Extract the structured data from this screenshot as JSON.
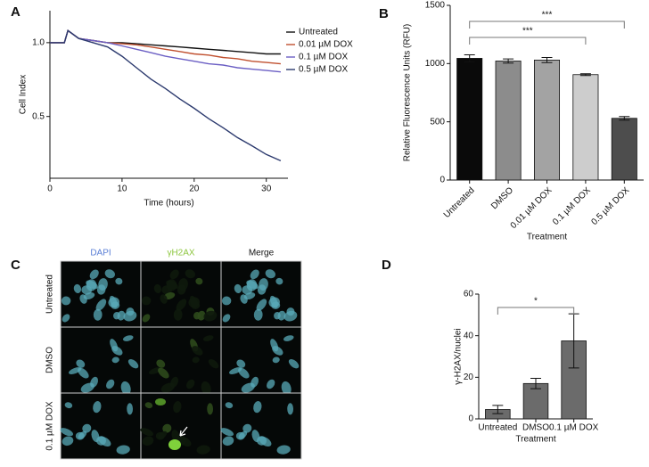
{
  "chart_data": [
    {
      "type": "line",
      "panel_label": "A",
      "x_label": "Time (hours)",
      "y_label": "Cell Index",
      "x": [
        0,
        2,
        2.5,
        4,
        6,
        8,
        10,
        12,
        14,
        16,
        18,
        20,
        22,
        24,
        26,
        28,
        30,
        32
      ],
      "xlim": [
        0,
        33
      ],
      "xticks": [
        0,
        10,
        20,
        30
      ],
      "ylim": [
        0.28,
        1.35
      ],
      "yticks": [
        0.5,
        {
          "value": 1,
          "label": "1.0"
        }
      ],
      "y_scale": "log",
      "legend": "upper right",
      "series": [
        {
          "name": "Untreated",
          "color": "#111111",
          "values": [
            1,
            1,
            1.12,
            1.04,
            1.02,
            1.0,
            1.0,
            0.99,
            0.98,
            0.97,
            0.96,
            0.95,
            0.94,
            0.93,
            0.92,
            0.91,
            0.9,
            0.9
          ]
        },
        {
          "name": "0.01 µM DOX",
          "color": "#c0502f",
          "values": [
            1,
            1,
            1.12,
            1.04,
            1.02,
            1.0,
            0.99,
            0.98,
            0.96,
            0.94,
            0.92,
            0.9,
            0.89,
            0.87,
            0.86,
            0.84,
            0.83,
            0.82
          ]
        },
        {
          "name": "0.1 µM DOX",
          "color": "#6b5fc4",
          "values": [
            1,
            1,
            1.12,
            1.04,
            1.02,
            1.0,
            0.97,
            0.94,
            0.91,
            0.88,
            0.86,
            0.84,
            0.82,
            0.81,
            0.79,
            0.78,
            0.77,
            0.76
          ]
        },
        {
          "name": "0.5 µM DOX",
          "color": "#2c3a6e",
          "values": [
            1,
            1,
            1.12,
            1.04,
            1.0,
            0.96,
            0.88,
            0.79,
            0.71,
            0.65,
            0.59,
            0.54,
            0.49,
            0.45,
            0.41,
            0.38,
            0.35,
            0.33
          ]
        }
      ]
    },
    {
      "type": "bar",
      "panel_label": "B",
      "x_label": "Treatment",
      "y_label": "Relative Fluorescence Units (RFU)",
      "categories": [
        "Untreated",
        "DMSO",
        "0.01 µM DOX",
        "0.1 µM DOX",
        "0.5 µM DOX"
      ],
      "values": [
        1045,
        1022,
        1030,
        905,
        530
      ],
      "errors": [
        30,
        18,
        22,
        8,
        15
      ],
      "colors": [
        "#0a0a0a",
        "#8c8c8c",
        "#a3a3a3",
        "#cdcdcd",
        "#4d4d4d"
      ],
      "ylim": [
        0,
        1500
      ],
      "yticks": [
        0,
        500,
        1000,
        1500
      ],
      "annotations": [
        {
          "text": "***",
          "from": "Untreated",
          "to": "0.1 µM DOX"
        },
        {
          "text": "***",
          "from": "Untreated",
          "to": "0.5 µM DOX"
        }
      ]
    },
    {
      "type": "bar",
      "panel_label": "D",
      "x_label": "Treatment",
      "y_label": "γ-H2AX/nuclei",
      "categories": [
        "Untreated",
        "DMSO",
        "0.1 µM DOX"
      ],
      "values": [
        4.5,
        17,
        37.5
      ],
      "errors": [
        2,
        2.5,
        13
      ],
      "color": "#6b6b6b",
      "ylim": [
        0,
        60
      ],
      "yticks": [
        0,
        20,
        40,
        60
      ],
      "annotations": [
        {
          "text": "*",
          "from": "Untreated",
          "to": "0.1 µM DOX"
        }
      ]
    }
  ],
  "image_grid": {
    "panel_label": "C",
    "columns": [
      "DAPI",
      "γH2AX",
      "Merge"
    ],
    "rows": [
      "Untreated",
      "DMSO",
      "0.1 µM DOX"
    ]
  }
}
